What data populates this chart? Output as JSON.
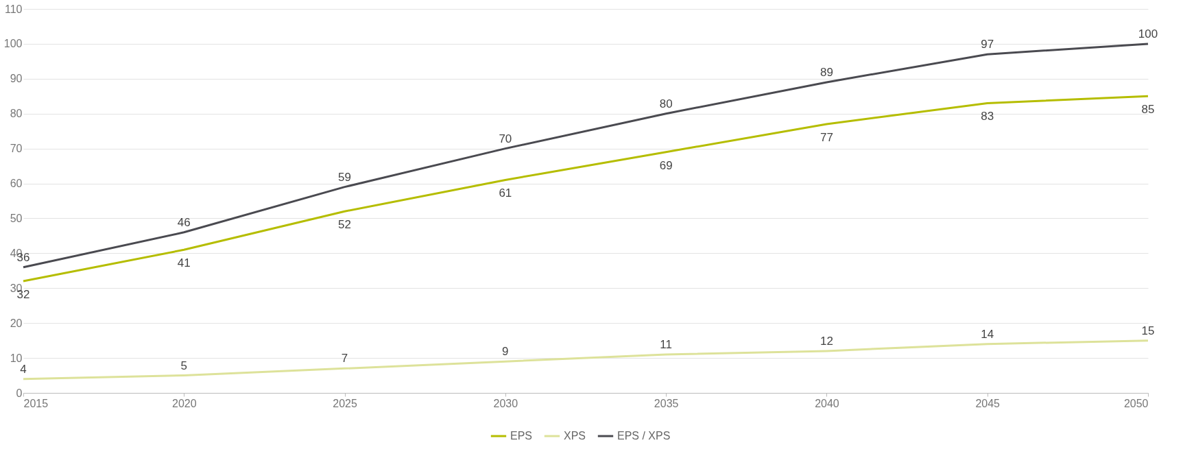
{
  "chart_data": {
    "type": "line",
    "x": [
      2015,
      2020,
      2025,
      2030,
      2035,
      2040,
      2045,
      2050
    ],
    "series": [
      {
        "name": "EPS",
        "color": "#b5bd00",
        "values": [
          32,
          41,
          52,
          61,
          69,
          77,
          83,
          85
        ]
      },
      {
        "name": "XPS",
        "color": "#dde29a",
        "values": [
          4,
          5,
          7,
          9,
          11,
          12,
          14,
          15
        ]
      },
      {
        "name": "EPS / XPS",
        "color": "#4a4a50",
        "values": [
          36,
          46,
          59,
          70,
          80,
          89,
          97,
          100
        ]
      }
    ],
    "xlim": [
      2015,
      2050
    ],
    "xticks": [
      2015,
      2020,
      2025,
      2030,
      2035,
      2040,
      2045,
      2050
    ],
    "ylim": [
      0,
      110
    ],
    "yticks": [
      0,
      10,
      20,
      30,
      40,
      50,
      60,
      70,
      80,
      90,
      100,
      110
    ],
    "grid": "y",
    "legend": "bottom",
    "data_labels": true,
    "marker": "none",
    "line_style": "solid"
  }
}
